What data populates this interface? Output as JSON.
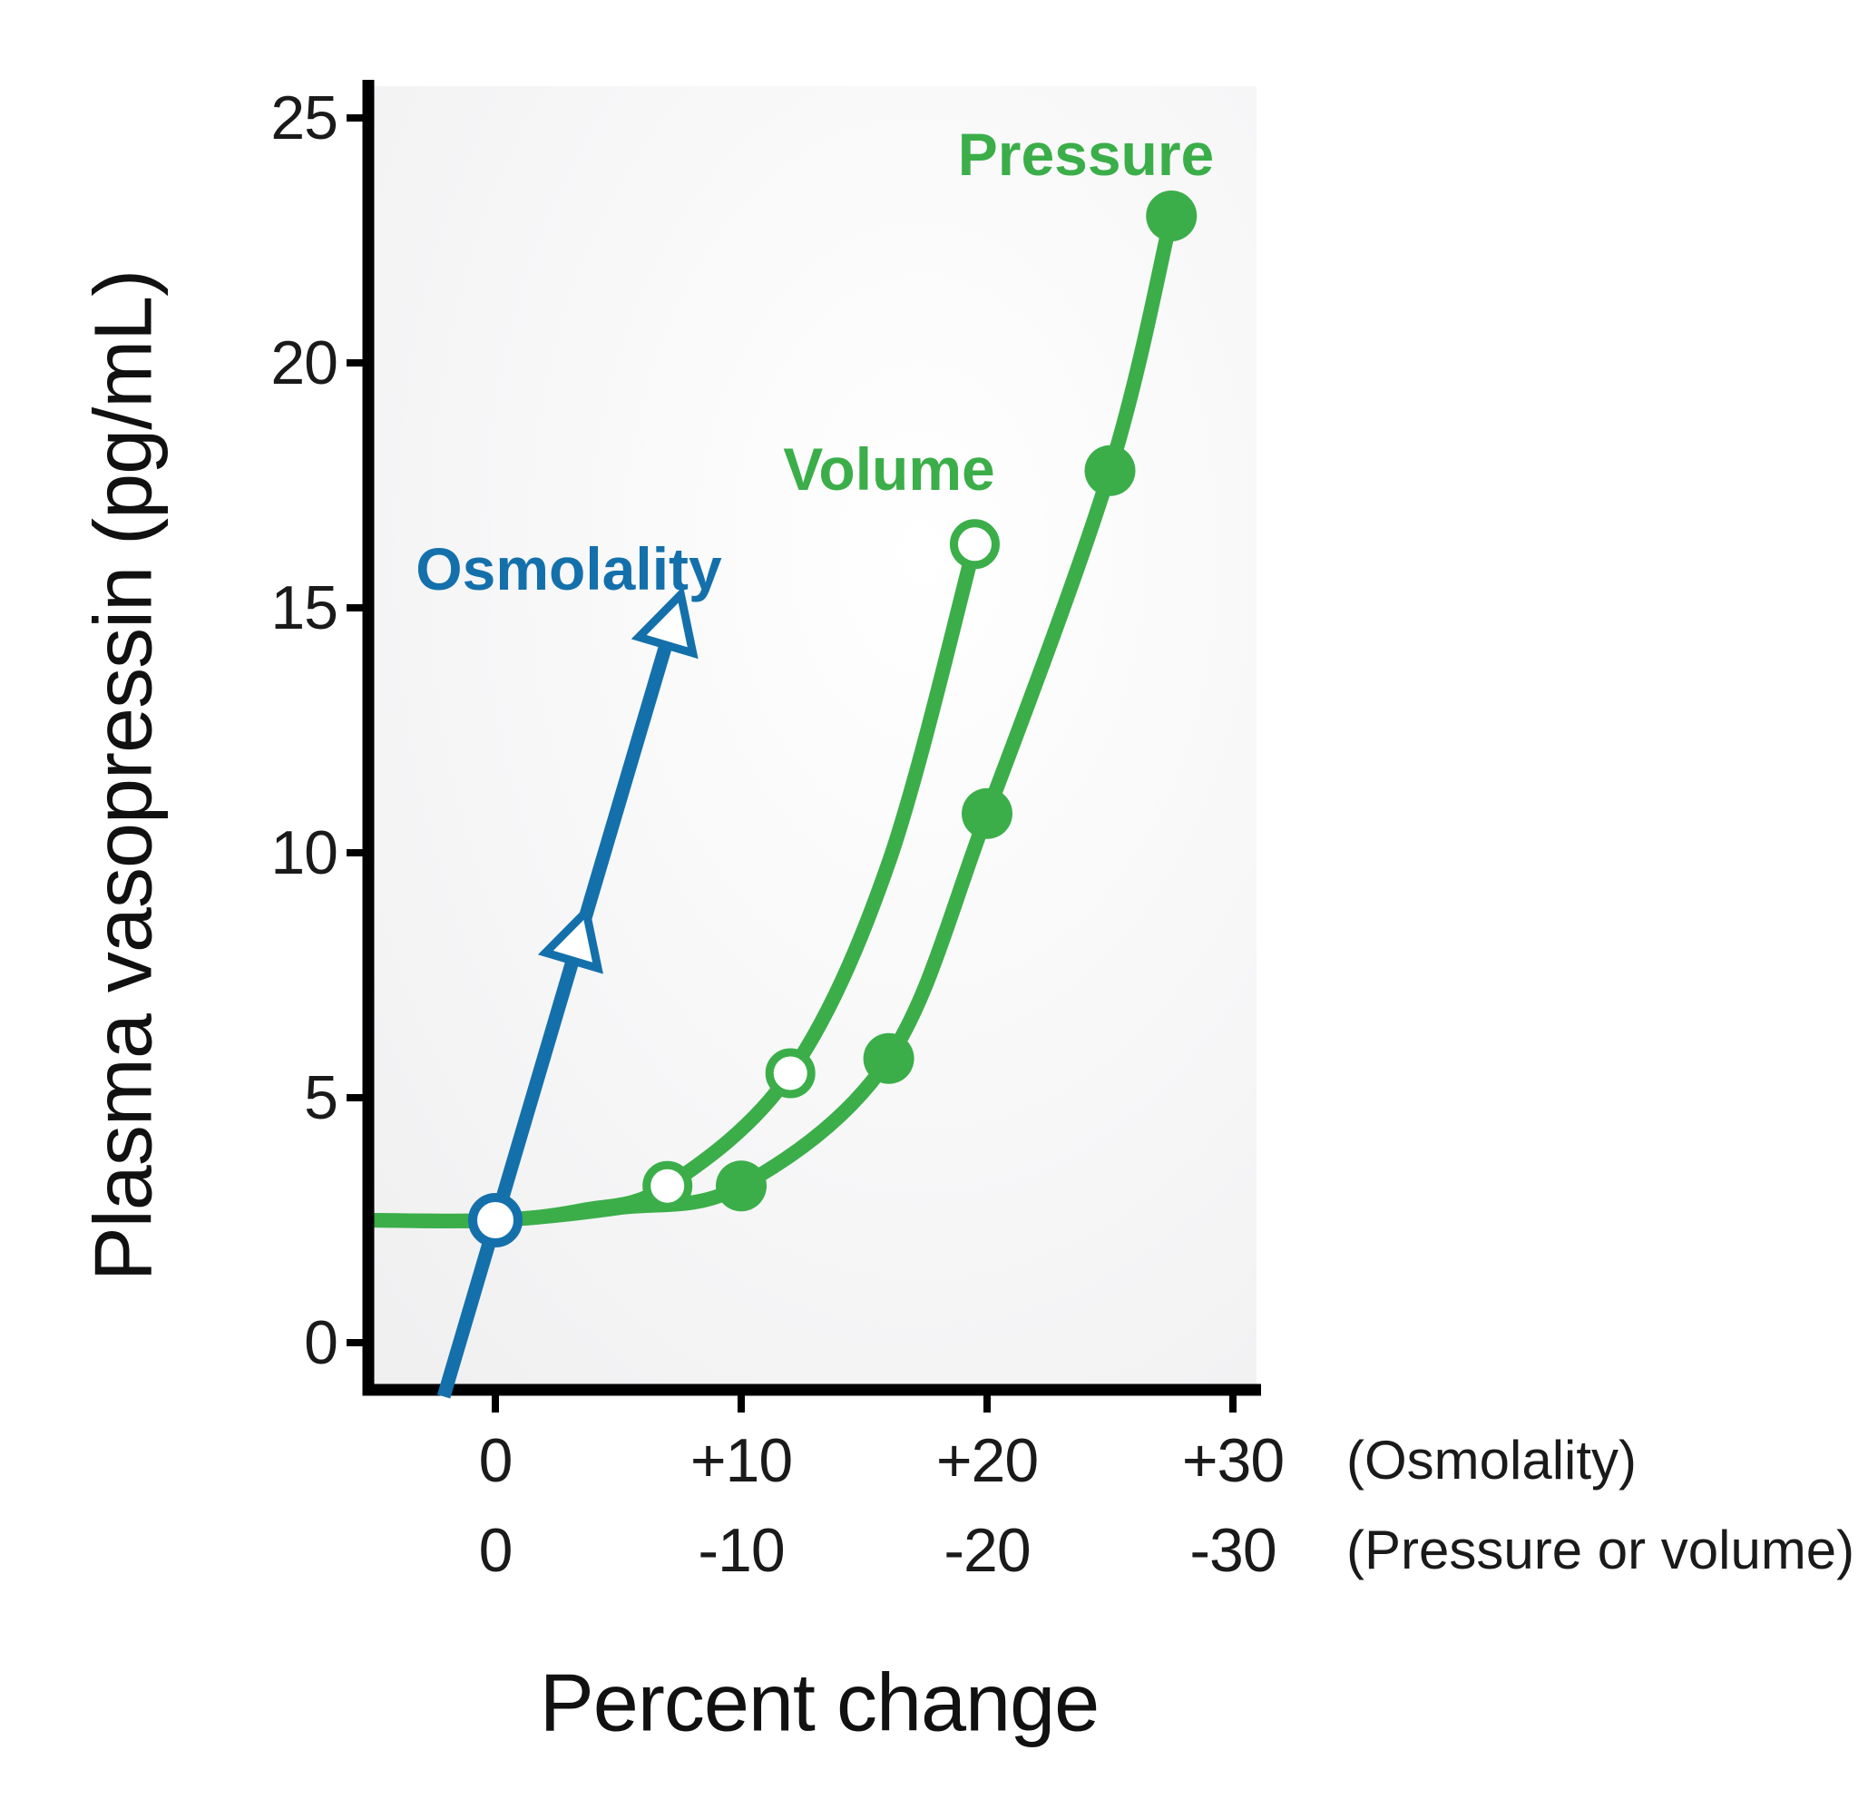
{
  "figure": {
    "ylabel": "Plasma vasopressin (pg/mL)",
    "xlabel": "Percent change",
    "series_labels": {
      "osmolality": "Osmolality",
      "volume": "Volume",
      "pressure": "Pressure"
    }
  },
  "colors": {
    "blue": "#1470AB",
    "green": "#3BAE49",
    "axis": "#000000",
    "text": "#1A1A1A",
    "plot_bg_edge": "#F0F0F1",
    "plot_bg_center": "#FFFFFF"
  },
  "chart_data": {
    "type": "line",
    "title": "",
    "xlabel": "Percent change",
    "ylabel": "Plasma vasopressin (pg/mL)",
    "ylim": [
      0,
      25
    ],
    "y_ticks": [
      0,
      5,
      10,
      15,
      20,
      25
    ],
    "grid": false,
    "legend": "inline-labels",
    "x_axis_rows": [
      {
        "name": "osmolality",
        "labels": [
          "0",
          "+10",
          "+20",
          "+30"
        ],
        "positions": [
          0,
          10,
          20,
          30
        ],
        "note": "(Osmolality)"
      },
      {
        "name": "pressure_or_volume",
        "labels": [
          "0",
          "-10",
          "-20",
          "-30"
        ],
        "positions": [
          0,
          10,
          20,
          30
        ],
        "note": "(Pressure or volume)"
      }
    ],
    "series": [
      {
        "name": "Osmolality",
        "color": "#1470AB",
        "marker": "open-triangle",
        "style": "straight-line-with-arrow",
        "x_scale": "osmolality_percent_increase",
        "line_start": [
          -2.1,
          -1.1
        ],
        "arrow_tip": [
          7.5,
          15.2
        ],
        "triangle_markers": [
          [
            3.4,
            8.3
          ]
        ],
        "origin_circle": [
          0,
          2.5
        ]
      },
      {
        "name": "Volume",
        "color": "#3BAE49",
        "marker": "open-circle",
        "style": "curve",
        "x_scale": "volume_percent_decrease",
        "baseline_y": 2.5,
        "points": [
          [
            0,
            2.5
          ],
          [
            -7,
            3.2
          ],
          [
            -12,
            5.5
          ],
          [
            -19.5,
            16.3
          ]
        ],
        "curve_through": [
          [
            0,
            2.5
          ],
          [
            -3.5,
            2.7
          ],
          [
            -7,
            3.2
          ],
          [
            -12,
            5.5
          ],
          [
            -16,
            9.8
          ],
          [
            -19.5,
            16.3
          ]
        ]
      },
      {
        "name": "Pressure",
        "color": "#3BAE49",
        "marker": "filled-circle",
        "style": "curve",
        "x_scale": "pressure_percent_decrease",
        "baseline_y": 2.5,
        "points": [
          [
            -10,
            3.2
          ],
          [
            -16,
            5.8
          ],
          [
            -20,
            10.8
          ],
          [
            -25,
            17.8
          ],
          [
            -27.5,
            23.0
          ]
        ],
        "curve_through": [
          [
            0,
            2.5
          ],
          [
            -5,
            2.75
          ],
          [
            -10,
            3.2
          ],
          [
            -16,
            5.8
          ],
          [
            -20,
            10.8
          ],
          [
            -25,
            17.8
          ],
          [
            -27.5,
            23.0
          ]
        ]
      }
    ]
  }
}
